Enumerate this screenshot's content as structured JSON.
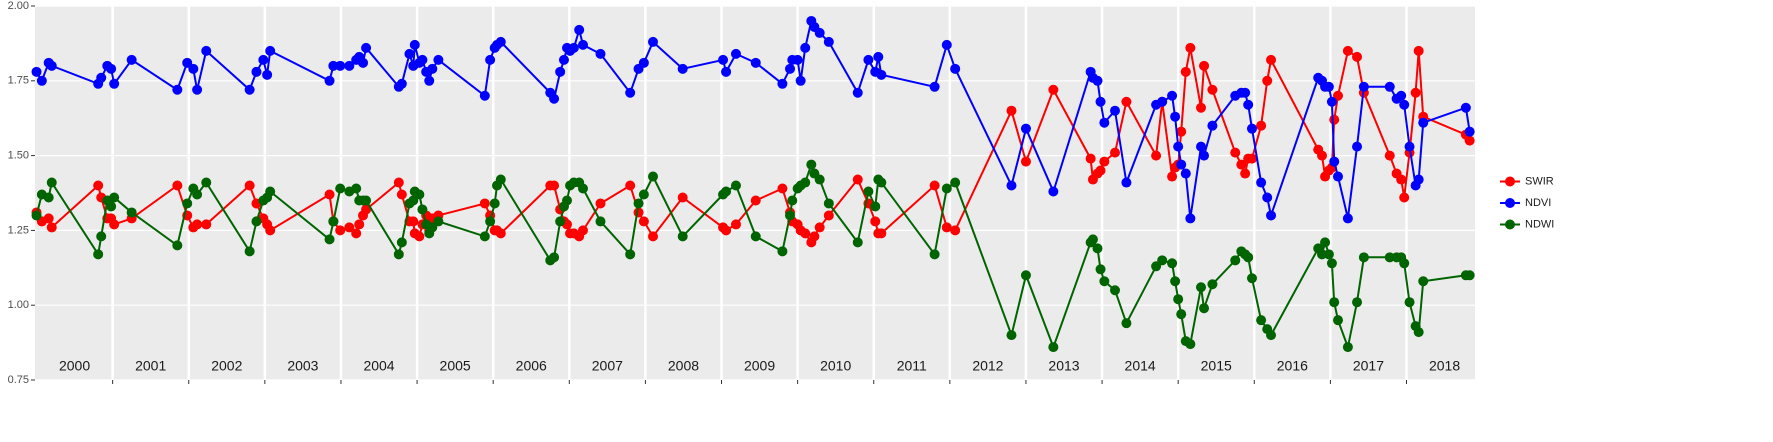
{
  "chart_data": {
    "type": "line",
    "x": [
      2000.0,
      2000.07,
      2000.16,
      2000.2,
      2000.81,
      2000.85,
      2000.93,
      2000.98,
      2001.02,
      2001.25,
      2001.85,
      2001.98,
      2002.06,
      2002.11,
      2002.23,
      2002.8,
      2002.89,
      2002.98,
      2003.03,
      2003.07,
      2003.85,
      2003.9,
      2003.99,
      2004.11,
      2004.2,
      2004.24,
      2004.29,
      2004.33,
      2004.76,
      2004.8,
      2004.9,
      2004.95,
      2004.97,
      2005.03,
      2005.07,
      2005.12,
      2005.16,
      2005.2,
      2005.28,
      2005.89,
      2005.96,
      2006.02,
      2006.05,
      2006.1,
      2006.75,
      2006.8,
      2006.88,
      2006.93,
      2006.97,
      2007.01,
      2007.06,
      2007.13,
      2007.18,
      2007.41,
      2007.8,
      2007.91,
      2007.98,
      2008.1,
      2008.49,
      2009.02,
      2009.06,
      2009.19,
      2009.45,
      2009.8,
      2009.9,
      2009.93,
      2010.0,
      2010.04,
      2010.1,
      2010.18,
      2010.22,
      2010.29,
      2010.41,
      2010.79,
      2010.93,
      2011.02,
      2011.06,
      2011.1,
      2011.8,
      2011.96,
      2012.07,
      2012.81,
      2013.0,
      2013.36,
      2013.85,
      2013.88,
      2013.94,
      2013.98,
      2014.03,
      2014.17,
      2014.32,
      2014.71,
      2014.79,
      2014.92,
      2014.96,
      2015.0,
      2015.04,
      2015.1,
      2015.16,
      2015.3,
      2015.34,
      2015.45,
      2015.75,
      2015.83,
      2015.88,
      2015.92,
      2015.97,
      2016.09,
      2016.17,
      2016.22,
      2016.84,
      2016.89,
      2016.93,
      2016.98,
      2017.02,
      2017.05,
      2017.1,
      2017.23,
      2017.35,
      2017.44,
      2017.78,
      2017.87,
      2017.93,
      2017.97,
      2018.04,
      2018.12,
      2018.16,
      2018.22,
      2018.78,
      2018.83
    ],
    "series": [
      {
        "name": "SWIR",
        "color": "#ff0000",
        "values": [
          1.31,
          1.28,
          1.29,
          1.26,
          1.4,
          1.36,
          1.29,
          1.29,
          1.27,
          1.29,
          1.4,
          1.3,
          1.26,
          1.27,
          1.27,
          1.4,
          1.34,
          1.29,
          1.27,
          1.25,
          1.37,
          1.28,
          1.25,
          1.26,
          1.24,
          1.27,
          1.3,
          1.32,
          1.41,
          1.37,
          1.28,
          1.28,
          1.24,
          1.23,
          1.27,
          1.3,
          1.25,
          1.29,
          1.3,
          1.34,
          1.3,
          1.25,
          1.25,
          1.24,
          1.4,
          1.4,
          1.32,
          1.28,
          1.27,
          1.24,
          1.24,
          1.23,
          1.25,
          1.34,
          1.4,
          1.31,
          1.28,
          1.23,
          1.36,
          1.26,
          1.25,
          1.27,
          1.35,
          1.39,
          1.31,
          1.28,
          1.27,
          1.25,
          1.24,
          1.21,
          1.23,
          1.26,
          1.3,
          1.42,
          1.34,
          1.28,
          1.24,
          1.24,
          1.4,
          1.26,
          1.25,
          1.65,
          1.48,
          1.72,
          1.49,
          1.42,
          1.44,
          1.45,
          1.48,
          1.51,
          1.68,
          1.5,
          1.68,
          1.43,
          1.46,
          1.47,
          1.58,
          1.78,
          1.86,
          1.66,
          1.8,
          1.72,
          1.51,
          1.47,
          1.44,
          1.49,
          1.49,
          1.6,
          1.75,
          1.82,
          1.52,
          1.5,
          1.43,
          1.45,
          1.46,
          1.62,
          1.7,
          1.85,
          1.83,
          1.71,
          1.5,
          1.44,
          1.42,
          1.36,
          1.51,
          1.71,
          1.85,
          1.63,
          1.57,
          1.55
        ]
      },
      {
        "name": "NDVI",
        "color": "#0000ff",
        "values": [
          1.78,
          1.75,
          1.81,
          1.8,
          1.74,
          1.76,
          1.8,
          1.79,
          1.74,
          1.82,
          1.72,
          1.81,
          1.79,
          1.72,
          1.85,
          1.72,
          1.78,
          1.82,
          1.77,
          1.85,
          1.75,
          1.8,
          1.8,
          1.8,
          1.82,
          1.83,
          1.81,
          1.86,
          1.73,
          1.74,
          1.84,
          1.8,
          1.87,
          1.81,
          1.82,
          1.78,
          1.75,
          1.79,
          1.82,
          1.7,
          1.82,
          1.86,
          1.87,
          1.88,
          1.71,
          1.69,
          1.78,
          1.82,
          1.86,
          1.85,
          1.86,
          1.92,
          1.87,
          1.84,
          1.71,
          1.79,
          1.81,
          1.88,
          1.79,
          1.82,
          1.78,
          1.84,
          1.81,
          1.74,
          1.79,
          1.82,
          1.82,
          1.75,
          1.86,
          1.95,
          1.93,
          1.91,
          1.88,
          1.71,
          1.82,
          1.78,
          1.83,
          1.77,
          1.73,
          1.87,
          1.79,
          1.4,
          1.59,
          1.38,
          1.78,
          1.76,
          1.75,
          1.68,
          1.61,
          1.65,
          1.41,
          1.67,
          1.68,
          1.7,
          1.63,
          1.53,
          1.47,
          1.44,
          1.29,
          1.53,
          1.5,
          1.6,
          1.7,
          1.71,
          1.71,
          1.67,
          1.59,
          1.41,
          1.36,
          1.3,
          1.76,
          1.75,
          1.73,
          1.73,
          1.68,
          1.48,
          1.43,
          1.29,
          1.53,
          1.73,
          1.73,
          1.69,
          1.7,
          1.67,
          1.53,
          1.4,
          1.42,
          1.61,
          1.66,
          1.58
        ]
      },
      {
        "name": "NDWI",
        "color": "#006400",
        "values": [
          1.3,
          1.37,
          1.36,
          1.41,
          1.17,
          1.23,
          1.35,
          1.33,
          1.36,
          1.31,
          1.2,
          1.34,
          1.39,
          1.37,
          1.41,
          1.18,
          1.28,
          1.35,
          1.36,
          1.38,
          1.22,
          1.28,
          1.39,
          1.38,
          1.39,
          1.35,
          1.35,
          1.35,
          1.17,
          1.21,
          1.34,
          1.35,
          1.38,
          1.37,
          1.32,
          1.27,
          1.24,
          1.26,
          1.28,
          1.23,
          1.28,
          1.34,
          1.4,
          1.42,
          1.15,
          1.16,
          1.28,
          1.33,
          1.35,
          1.4,
          1.41,
          1.41,
          1.39,
          1.28,
          1.17,
          1.34,
          1.37,
          1.43,
          1.23,
          1.37,
          1.38,
          1.4,
          1.23,
          1.18,
          1.3,
          1.35,
          1.39,
          1.4,
          1.41,
          1.47,
          1.44,
          1.42,
          1.34,
          1.21,
          1.38,
          1.33,
          1.42,
          1.41,
          1.17,
          1.39,
          1.41,
          0.9,
          1.1,
          0.86,
          1.21,
          1.22,
          1.19,
          1.12,
          1.08,
          1.05,
          0.94,
          1.13,
          1.15,
          1.14,
          1.08,
          1.02,
          0.97,
          0.88,
          0.87,
          1.06,
          0.99,
          1.07,
          1.15,
          1.18,
          1.17,
          1.16,
          1.09,
          0.95,
          0.92,
          0.9,
          1.19,
          1.17,
          1.21,
          1.17,
          1.14,
          1.01,
          0.95,
          0.86,
          1.01,
          1.16,
          1.16,
          1.16,
          1.16,
          1.14,
          1.01,
          0.93,
          0.91,
          1.08,
          1.1,
          1.1
        ]
      }
    ],
    "xlim": [
      1999.98,
      2018.9
    ],
    "xticks": [
      2001,
      2002,
      2003,
      2004,
      2005,
      2006,
      2007,
      2008,
      2009,
      2010,
      2011,
      2012,
      2013,
      2014,
      2015,
      2016,
      2017,
      2018
    ],
    "year_labels": [
      {
        "value": 2000.5,
        "label": "2000"
      },
      {
        "value": 2001.5,
        "label": "2001"
      },
      {
        "value": 2002.5,
        "label": "2002"
      },
      {
        "value": 2003.5,
        "label": "2003"
      },
      {
        "value": 2004.5,
        "label": "2004"
      },
      {
        "value": 2005.5,
        "label": "2005"
      },
      {
        "value": 2006.5,
        "label": "2006"
      },
      {
        "value": 2007.5,
        "label": "2007"
      },
      {
        "value": 2008.5,
        "label": "2008"
      },
      {
        "value": 2009.5,
        "label": "2009"
      },
      {
        "value": 2010.5,
        "label": "2010"
      },
      {
        "value": 2011.5,
        "label": "2011"
      },
      {
        "value": 2012.5,
        "label": "2012"
      },
      {
        "value": 2013.5,
        "label": "2013"
      },
      {
        "value": 2014.5,
        "label": "2014"
      },
      {
        "value": 2015.5,
        "label": "2015"
      },
      {
        "value": 2016.5,
        "label": "2016"
      },
      {
        "value": 2017.5,
        "label": "2017"
      },
      {
        "value": 2018.5,
        "label": "2018"
      }
    ],
    "ylim": [
      0.75,
      2.0
    ],
    "yticks": [
      0.75,
      {
        "value": 1.0,
        "label": "1.00"
      },
      1.25,
      {
        "value": 1.5,
        "label": "1.50"
      },
      1.75,
      {
        "value": 2.0,
        "label": "2.00"
      }
    ],
    "grid": true,
    "legend": "right"
  }
}
